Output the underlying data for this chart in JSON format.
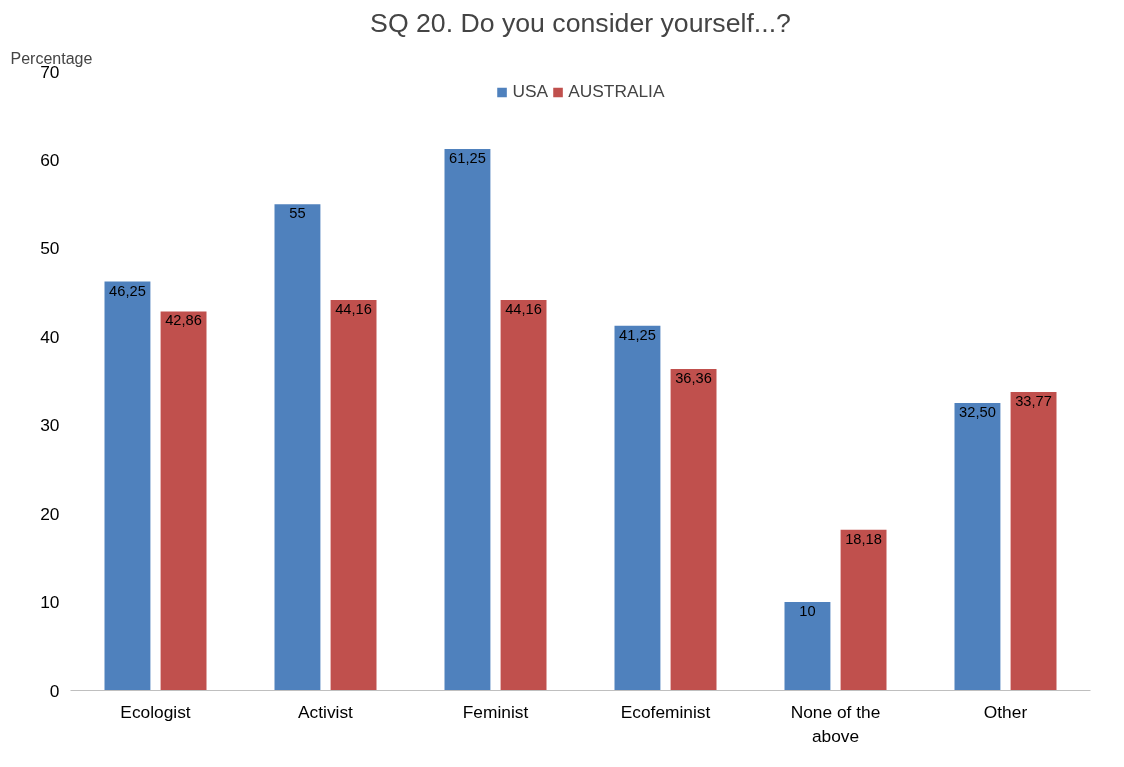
{
  "chart_data": {
    "type": "bar",
    "title": "SQ 20. Do you consider yourself...?",
    "ylabel": "Percentage",
    "categories": [
      "Ecologist",
      "Activist",
      "Feminist",
      "Ecofeminist",
      "None of the above",
      "Other"
    ],
    "series": [
      {
        "name": "USA",
        "color": "#4f81bd",
        "values": [
          46.25,
          55,
          61.25,
          41.25,
          10,
          32.5
        ],
        "value_labels": [
          "46,25",
          "55",
          "61,25",
          "41,25",
          "10",
          "32,50"
        ]
      },
      {
        "name": "AUSTRALIA",
        "color": "#c0504d",
        "values": [
          42.86,
          44.16,
          44.16,
          36.36,
          18.18,
          33.77
        ],
        "value_labels": [
          "42,86",
          "44,16",
          "44,16",
          "36,36",
          "18,18",
          "33,77"
        ]
      }
    ],
    "ylim": [
      0,
      70
    ],
    "yticks": [
      0,
      10,
      20,
      30,
      40,
      50,
      60,
      70
    ],
    "grid": false,
    "legend": "top"
  }
}
